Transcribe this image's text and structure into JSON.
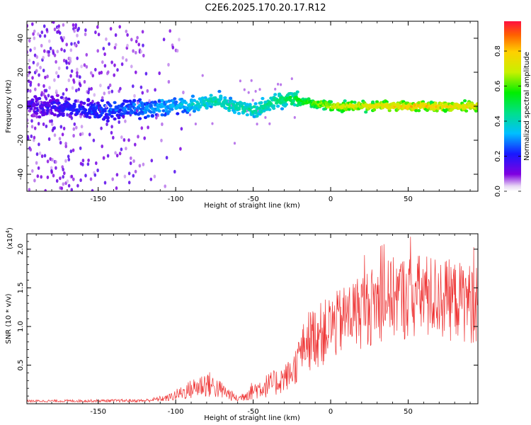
{
  "title": "C2E6.2025.170.20.17.R12",
  "chart_data": [
    {
      "type": "heatmap",
      "name": "spectrogram",
      "xlabel": "Height of straight line (km)",
      "ylabel": "Frequency (Hz)",
      "xlim": [
        -196,
        95
      ],
      "ylim": [
        -50,
        50
      ],
      "xticks": [
        -150,
        -100,
        -50,
        0,
        50
      ],
      "yticks": [
        -40,
        -20,
        0,
        20,
        40
      ],
      "colorbar": {
        "label": "Normalized spectral amplitude",
        "range": [
          0,
          0.97
        ],
        "ticks": [
          0.0,
          0.2,
          0.4,
          0.6,
          0.8
        ]
      },
      "ridge": {
        "description_points": [
          {
            "x": -195,
            "y": 0,
            "amp": 0.15
          },
          {
            "x": -150,
            "y": -2,
            "amp": 0.25
          },
          {
            "x": -100,
            "y": 0,
            "amp": 0.35
          },
          {
            "x": -75,
            "y": 3,
            "amp": 0.45
          },
          {
            "x": -50,
            "y": -3,
            "amp": 0.45
          },
          {
            "x": -30,
            "y": 5,
            "amp": 0.5
          },
          {
            "x": 0,
            "y": 0,
            "amp": 0.75
          },
          {
            "x": 50,
            "y": 0,
            "amp": 0.85
          },
          {
            "x": 95,
            "y": 0,
            "amp": 0.8
          }
        ]
      }
    },
    {
      "type": "line",
      "name": "snr",
      "xlabel": "Height of straight line (km)",
      "ylabel": "SNR (10 * v/v)",
      "yscale_label": "(x10",
      "yscale_exponent": "4",
      "xlim": [
        -196,
        95
      ],
      "ylim": [
        0,
        2.2
      ],
      "xticks": [
        -150,
        -100,
        -50,
        0,
        50
      ],
      "yticks": [
        0.5,
        1.0,
        1.5,
        2.0
      ],
      "color": "#ee3333",
      "envelope": [
        {
          "x": -196,
          "lo": 0.02,
          "hi": 0.05
        },
        {
          "x": -120,
          "lo": 0.02,
          "hi": 0.06
        },
        {
          "x": -105,
          "lo": 0.03,
          "hi": 0.12
        },
        {
          "x": -95,
          "lo": 0.05,
          "hi": 0.25
        },
        {
          "x": -80,
          "lo": 0.08,
          "hi": 0.45
        },
        {
          "x": -68,
          "lo": 0.05,
          "hi": 0.25
        },
        {
          "x": -60,
          "lo": 0.02,
          "hi": 0.1
        },
        {
          "x": -50,
          "lo": 0.05,
          "hi": 0.3
        },
        {
          "x": -35,
          "lo": 0.1,
          "hi": 0.45
        },
        {
          "x": -25,
          "lo": 0.2,
          "hi": 0.6
        },
        {
          "x": -15,
          "lo": 0.4,
          "hi": 1.2
        },
        {
          "x": 0,
          "lo": 0.5,
          "hi": 1.4
        },
        {
          "x": 20,
          "lo": 0.7,
          "hi": 1.7
        },
        {
          "x": 40,
          "lo": 0.8,
          "hi": 1.9
        },
        {
          "x": 60,
          "lo": 0.75,
          "hi": 1.95
        },
        {
          "x": 80,
          "lo": 0.8,
          "hi": 1.85
        },
        {
          "x": 95,
          "lo": 0.75,
          "hi": 1.8
        }
      ]
    }
  ]
}
